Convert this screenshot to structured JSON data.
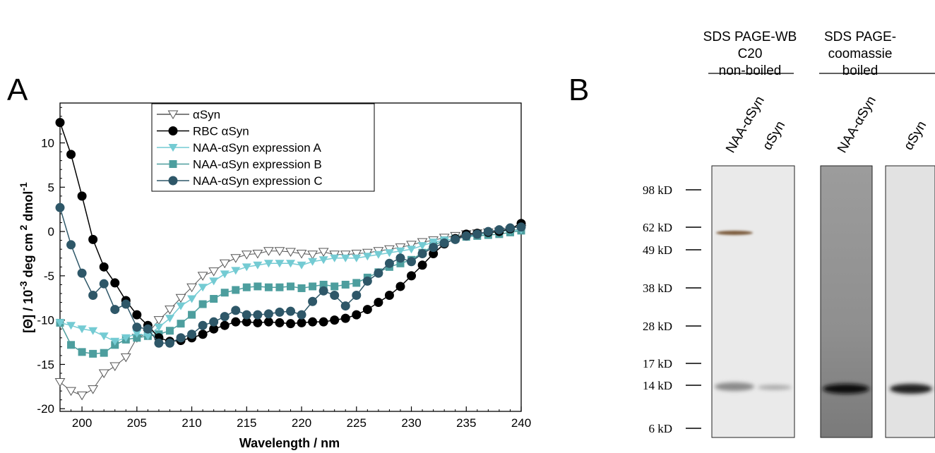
{
  "panel_a_label": "A",
  "panel_b_label": "B",
  "chart_data": {
    "type": "line",
    "xlabel": "Wavelength / nm",
    "ylabel_parts": [
      "[Θ] / 10",
      "-3",
      " deg cm",
      " 2",
      " dmol",
      "-1"
    ],
    "xlim": [
      198,
      240
    ],
    "ylim": [
      -20.3,
      14.5
    ],
    "xticks": [
      200,
      205,
      210,
      215,
      220,
      225,
      230,
      235,
      240
    ],
    "yticks": [
      -20,
      -15,
      -10,
      -5,
      0,
      5,
      10
    ],
    "grid": false,
    "legend_position": "top-center",
    "series": [
      {
        "name": "αSyn",
        "color": "#555555",
        "marker": "triangle-down-open",
        "x": [
          198,
          199,
          200,
          201,
          202,
          203,
          204,
          205,
          206,
          207,
          208,
          209,
          210,
          211,
          212,
          213,
          214,
          215,
          216,
          217,
          218,
          219,
          220,
          221,
          222,
          223,
          224,
          225,
          226,
          227,
          228,
          229,
          230,
          231,
          232,
          233,
          234,
          235,
          236,
          237,
          238,
          239,
          240
        ],
        "y": [
          -17.0,
          -18.0,
          -18.5,
          -17.8,
          -16.0,
          -15.2,
          -14.2,
          -12.0,
          -11.5,
          -10.0,
          -8.8,
          -7.5,
          -6.3,
          -5.0,
          -4.5,
          -3.6,
          -3.0,
          -2.6,
          -2.5,
          -2.2,
          -2.2,
          -2.3,
          -2.5,
          -2.6,
          -2.3,
          -2.6,
          -2.6,
          -2.5,
          -2.4,
          -2.2,
          -2.0,
          -1.8,
          -1.5,
          -1.2,
          -1.0,
          -0.7,
          -0.5,
          -0.3,
          -0.2,
          -0.1,
          0.0,
          0.1,
          0.3
        ]
      },
      {
        "name": "RBC αSyn",
        "color": "#000000",
        "marker": "circle",
        "x": [
          198,
          199,
          200,
          201,
          202,
          203,
          204,
          205,
          206,
          207,
          208,
          209,
          210,
          211,
          212,
          213,
          214,
          215,
          216,
          217,
          218,
          219,
          220,
          221,
          222,
          223,
          224,
          225,
          226,
          227,
          228,
          229,
          230,
          231,
          232,
          233,
          234,
          235,
          236,
          237,
          238,
          239,
          240
        ],
        "y": [
          12.3,
          8.7,
          4.0,
          -0.9,
          -4.0,
          -5.8,
          -7.8,
          -9.4,
          -10.6,
          -12.0,
          -12.4,
          -12.3,
          -12.0,
          -11.6,
          -11.0,
          -10.6,
          -10.2,
          -10.2,
          -10.3,
          -10.2,
          -10.3,
          -10.4,
          -10.3,
          -10.2,
          -10.2,
          -10.0,
          -9.8,
          -9.4,
          -8.8,
          -8.0,
          -7.2,
          -6.2,
          -5.0,
          -3.8,
          -2.5,
          -1.4,
          -0.8,
          -0.3,
          -0.2,
          -0.1,
          0.0,
          0.3,
          0.9
        ]
      },
      {
        "name": "NAA-αSyn expression A",
        "color": "#74CBD3",
        "marker": "triangle-down",
        "x": [
          198,
          199,
          200,
          201,
          202,
          203,
          204,
          205,
          206,
          207,
          208,
          209,
          210,
          211,
          212,
          213,
          214,
          215,
          216,
          217,
          218,
          219,
          220,
          221,
          222,
          223,
          224,
          225,
          226,
          227,
          228,
          229,
          230,
          231,
          232,
          233,
          234,
          235,
          236,
          237,
          238,
          239,
          240
        ],
        "y": [
          -10.3,
          -10.6,
          -11.0,
          -11.2,
          -11.8,
          -12.4,
          -12.0,
          -11.5,
          -11.8,
          -10.8,
          -9.8,
          -8.4,
          -7.6,
          -6.3,
          -5.6,
          -4.8,
          -4.4,
          -4.0,
          -3.8,
          -3.6,
          -3.6,
          -3.6,
          -3.8,
          -3.4,
          -3.2,
          -3.0,
          -3.0,
          -3.0,
          -2.8,
          -2.6,
          -2.4,
          -2.2,
          -2.0,
          -1.6,
          -1.2,
          -1.0,
          -0.8,
          -0.6,
          -0.4,
          -0.2,
          0.0,
          0.1,
          0.2
        ]
      },
      {
        "name": "NAA-αSyn expression B",
        "color": "#4D9E9E",
        "marker": "square",
        "x": [
          198,
          199,
          200,
          201,
          202,
          203,
          204,
          205,
          206,
          207,
          208,
          209,
          210,
          211,
          212,
          213,
          214,
          215,
          216,
          217,
          218,
          219,
          220,
          221,
          222,
          223,
          224,
          225,
          226,
          227,
          228,
          229,
          230,
          231,
          232,
          233,
          234,
          235,
          236,
          237,
          238,
          239,
          240
        ],
        "y": [
          -10.3,
          -12.8,
          -13.6,
          -13.8,
          -13.7,
          -12.8,
          -12.2,
          -12.0,
          -11.8,
          -11.6,
          -11.2,
          -10.4,
          -9.4,
          -8.2,
          -7.6,
          -6.9,
          -6.6,
          -6.3,
          -6.2,
          -6.3,
          -6.3,
          -6.2,
          -6.4,
          -6.2,
          -6.0,
          -6.2,
          -6.0,
          -5.8,
          -5.2,
          -4.6,
          -4.0,
          -3.6,
          -3.2,
          -2.4,
          -1.6,
          -1.0,
          -0.8,
          -0.6,
          -0.5,
          -0.4,
          -0.3,
          -0.1,
          0.1
        ]
      },
      {
        "name": "NAA-αSyn expression C",
        "color": "#2E5768",
        "marker": "circle",
        "x": [
          198,
          199,
          200,
          201,
          202,
          203,
          204,
          205,
          206,
          207,
          208,
          209,
          210,
          211,
          212,
          213,
          214,
          215,
          216,
          217,
          218,
          219,
          220,
          221,
          222,
          223,
          224,
          225,
          226,
          227,
          228,
          229,
          230,
          231,
          232,
          233,
          234,
          235,
          236,
          237,
          238,
          239,
          240
        ],
        "y": [
          2.7,
          -1.5,
          -4.7,
          -7.2,
          -5.9,
          -8.8,
          -8.2,
          -10.8,
          -11.0,
          -12.6,
          -12.6,
          -12.0,
          -11.6,
          -10.6,
          -10.2,
          -9.6,
          -8.9,
          -9.4,
          -9.4,
          -9.3,
          -9.1,
          -9.0,
          -9.4,
          -7.9,
          -6.7,
          -7.2,
          -8.4,
          -7.2,
          -5.6,
          -4.7,
          -3.6,
          -3.0,
          -3.4,
          -2.5,
          -1.8,
          -1.3,
          -0.9,
          -0.5,
          -0.3,
          0.0,
          0.2,
          0.4,
          0.5
        ]
      }
    ]
  },
  "gel": {
    "groups": [
      {
        "lines": [
          "SDS PAGE-WB",
          "C20",
          "non-boiled"
        ]
      },
      {
        "lines": [
          "SDS PAGE-",
          "coomassie",
          "boiled"
        ]
      }
    ],
    "lanes": [
      "NAA-αSyn",
      "αSyn",
      "NAA-αSyn",
      "αSyn"
    ],
    "markers": [
      {
        "label": "98 kD",
        "kd": 98
      },
      {
        "label": "62 kD",
        "kd": 62
      },
      {
        "label": "49 kD",
        "kd": 49
      },
      {
        "label": "38 kD",
        "kd": 38
      },
      {
        "label": "28 kD",
        "kd": 28
      },
      {
        "label": "17 kD",
        "kd": 17
      },
      {
        "label": "14 kD",
        "kd": 14
      },
      {
        "label": "6 kD",
        "kd": 6
      }
    ]
  }
}
